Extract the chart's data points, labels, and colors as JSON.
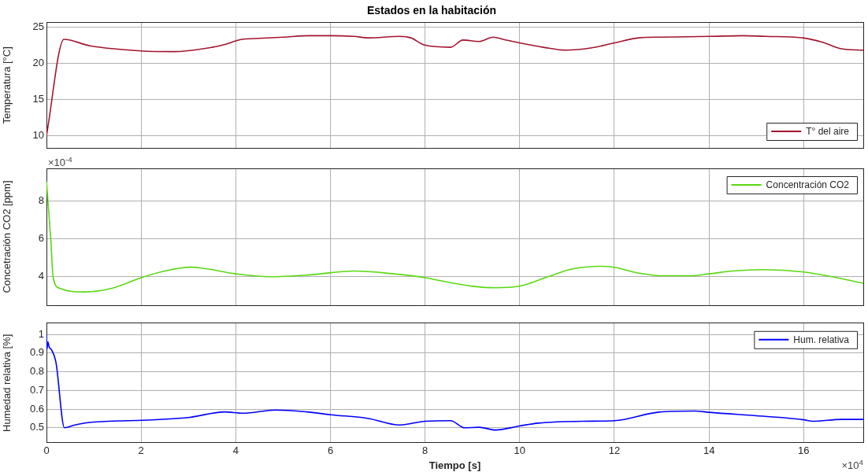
{
  "chart_data": [
    {
      "type": "line",
      "title": "Estados en la habitación",
      "ylabel": "Temperatura [°C]",
      "xlim": [
        0,
        17.26
      ],
      "ylim": [
        8.3,
        25.6
      ],
      "yticks": [
        10,
        15,
        20,
        25
      ],
      "xticks": [
        0,
        2,
        4,
        6,
        8,
        10,
        12,
        14,
        16
      ],
      "grid": true,
      "legend": "bottom right",
      "tick_labels": "y",
      "marker": "none",
      "line_style": "solid",
      "series": [
        {
          "name": "T° del aire",
          "color": "#a2142f",
          "x": [
            0,
            0.37,
            0.92,
            2.0,
            2.7,
            3.5,
            3.77,
            4.13,
            4.4,
            5.0,
            5.56,
            6.0,
            6.5,
            6.8,
            7.46,
            7.7,
            7.99,
            8.54,
            8.8,
            9.14,
            9.44,
            9.65,
            10.0,
            10.5,
            10.98,
            11.5,
            12.0,
            12.52,
            13.0,
            14.0,
            14.73,
            15.2,
            15.98,
            16.4,
            16.8,
            17.26
          ],
          "values": [
            10,
            23.3,
            22.4,
            21.7,
            21.6,
            22.2,
            22.6,
            23.3,
            23.4,
            23.6,
            23.8,
            23.8,
            23.7,
            23.5,
            23.7,
            23.5,
            22.5,
            22.2,
            23.2,
            23.0,
            23.6,
            23.3,
            22.8,
            22.2,
            21.8,
            22.1,
            22.8,
            23.5,
            23.6,
            23.7,
            23.8,
            23.7,
            23.5,
            22.9,
            22.0,
            21.8
          ]
        }
      ]
    },
    {
      "type": "line",
      "ylabel": "Concetración CO2 [ppm]",
      "annotations": [
        "×10$^{-4}$"
      ],
      "xlim": [
        0,
        17.26
      ],
      "ylim": [
        2.5,
        9.7
      ],
      "yticks": [
        4,
        6,
        8
      ],
      "xticks": [
        0,
        2,
        4,
        6,
        8,
        10,
        12,
        14,
        16
      ],
      "grid": true,
      "legend": "top right",
      "tick_labels": "y",
      "marker": "none",
      "line_style": "solid",
      "series": [
        {
          "name": "Concentración CO2",
          "color": "#59d910",
          "x": [
            0,
            0.09,
            0.14,
            0.27,
            0.8,
            1.4,
            2.0,
            2.5,
            3.05,
            4.0,
            4.71,
            5.56,
            6.5,
            7.34,
            8.0,
            8.3,
            9.0,
            9.49,
            10.0,
            10.6,
            11.1,
            11.69,
            12.0,
            12.5,
            13.06,
            13.6,
            14.0,
            14.5,
            15.14,
            16.0,
            16.6,
            17.26
          ],
          "values": [
            9.0,
            6.0,
            4.0,
            3.4,
            3.2,
            3.4,
            3.95,
            4.3,
            4.5,
            4.15,
            4.0,
            4.1,
            4.3,
            4.15,
            3.95,
            3.8,
            3.5,
            3.42,
            3.5,
            4.0,
            4.4,
            4.55,
            4.5,
            4.2,
            4.05,
            4.05,
            4.15,
            4.3,
            4.37,
            4.25,
            4.0,
            3.65
          ]
        }
      ]
    },
    {
      "type": "line",
      "ylabel": "Humedad relativa [%]",
      "xlabel": "Tiempo [s]",
      "annotations": [
        "×10$^{4}$"
      ],
      "xlim": [
        0,
        17.26
      ],
      "ylim": [
        0.42,
        1.06
      ],
      "yticks": [
        0.5,
        0.6,
        0.7,
        0.8,
        0.9,
        1
      ],
      "xticks": [
        0,
        2,
        4,
        6,
        8,
        10,
        12,
        14,
        16
      ],
      "grid": true,
      "legend": "top right",
      "marker": "none",
      "line_style": "solid",
      "series": [
        {
          "name": "Hum. relativa",
          "color": "#0000ff",
          "x": [
            0,
            0.01,
            0.03,
            0.06,
            0.1,
            0.2,
            0.38,
            0.6,
            0.95,
            2.0,
            3.0,
            3.77,
            4.15,
            4.84,
            5.5,
            6.0,
            6.8,
            7.46,
            8.0,
            8.54,
            8.84,
            9.14,
            9.49,
            10.0,
            10.39,
            11.34,
            12.0,
            12.94,
            13.7,
            14.0,
            15.14,
            16.0,
            16.2,
            16.8,
            17.26
          ],
          "values": [
            1.0,
            0.92,
            0.96,
            0.93,
            0.92,
            0.85,
            0.5,
            0.515,
            0.53,
            0.54,
            0.555,
            0.585,
            0.578,
            0.595,
            0.585,
            0.57,
            0.55,
            0.515,
            0.535,
            0.538,
            0.5,
            0.503,
            0.488,
            0.51,
            0.525,
            0.535,
            0.538,
            0.584,
            0.59,
            0.583,
            0.562,
            0.543,
            0.535,
            0.545,
            0.545
          ]
        }
      ]
    }
  ]
}
